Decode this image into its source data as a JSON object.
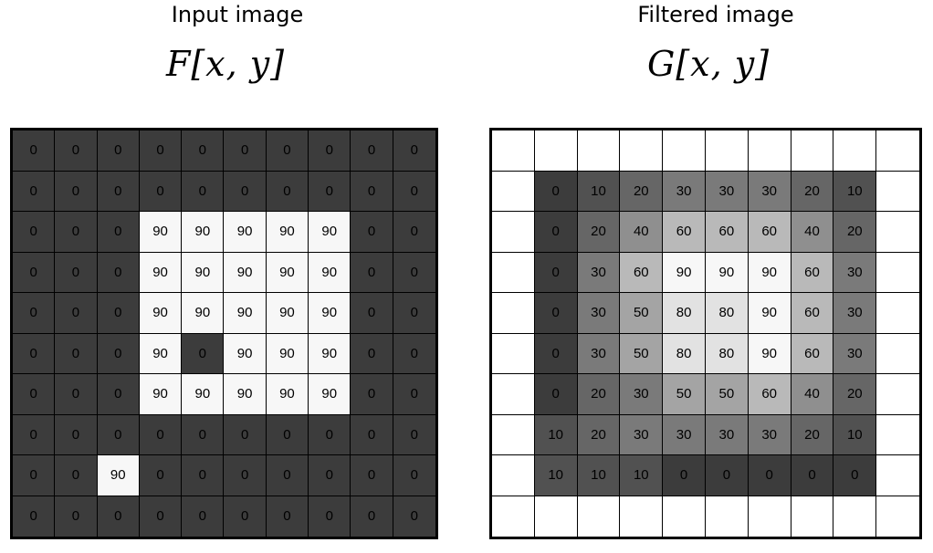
{
  "input_panel": {
    "title": "Input image",
    "math_label": "F[x, y]",
    "cells": [
      [
        0,
        0,
        0,
        0,
        0,
        0,
        0,
        0,
        0,
        0
      ],
      [
        0,
        0,
        0,
        0,
        0,
        0,
        0,
        0,
        0,
        0
      ],
      [
        0,
        0,
        0,
        90,
        90,
        90,
        90,
        90,
        0,
        0
      ],
      [
        0,
        0,
        0,
        90,
        90,
        90,
        90,
        90,
        0,
        0
      ],
      [
        0,
        0,
        0,
        90,
        90,
        90,
        90,
        90,
        0,
        0
      ],
      [
        0,
        0,
        0,
        90,
        0,
        90,
        90,
        90,
        0,
        0
      ],
      [
        0,
        0,
        0,
        90,
        90,
        90,
        90,
        90,
        0,
        0
      ],
      [
        0,
        0,
        0,
        0,
        0,
        0,
        0,
        0,
        0,
        0
      ],
      [
        0,
        0,
        90,
        0,
        0,
        0,
        0,
        0,
        0,
        0
      ],
      [
        0,
        0,
        0,
        0,
        0,
        0,
        0,
        0,
        0,
        0
      ]
    ]
  },
  "filtered_panel": {
    "title": "Filtered image",
    "math_label": "G[x, y]",
    "cells": [
      [
        "",
        "",
        "",
        "",
        "",
        "",
        "",
        "",
        "",
        ""
      ],
      [
        "",
        0,
        10,
        20,
        30,
        30,
        30,
        20,
        10,
        ""
      ],
      [
        "",
        0,
        20,
        40,
        60,
        60,
        60,
        40,
        20,
        ""
      ],
      [
        "",
        0,
        30,
        60,
        90,
        90,
        90,
        60,
        30,
        ""
      ],
      [
        "",
        0,
        30,
        50,
        80,
        80,
        90,
        60,
        30,
        ""
      ],
      [
        "",
        0,
        30,
        50,
        80,
        80,
        90,
        60,
        30,
        ""
      ],
      [
        "",
        0,
        20,
        30,
        50,
        50,
        60,
        40,
        20,
        ""
      ],
      [
        "",
        10,
        20,
        30,
        30,
        30,
        30,
        20,
        10,
        ""
      ],
      [
        "",
        10,
        10,
        10,
        0,
        0,
        0,
        0,
        0,
        ""
      ],
      [
        "",
        "",
        "",
        "",
        "",
        "",
        "",
        "",
        "",
        ""
      ]
    ]
  },
  "colors": {
    "blank_cell": "#ffffff",
    "grayscale_min": "#3c3c3c",
    "grayscale_max": "#f7f7f7"
  }
}
